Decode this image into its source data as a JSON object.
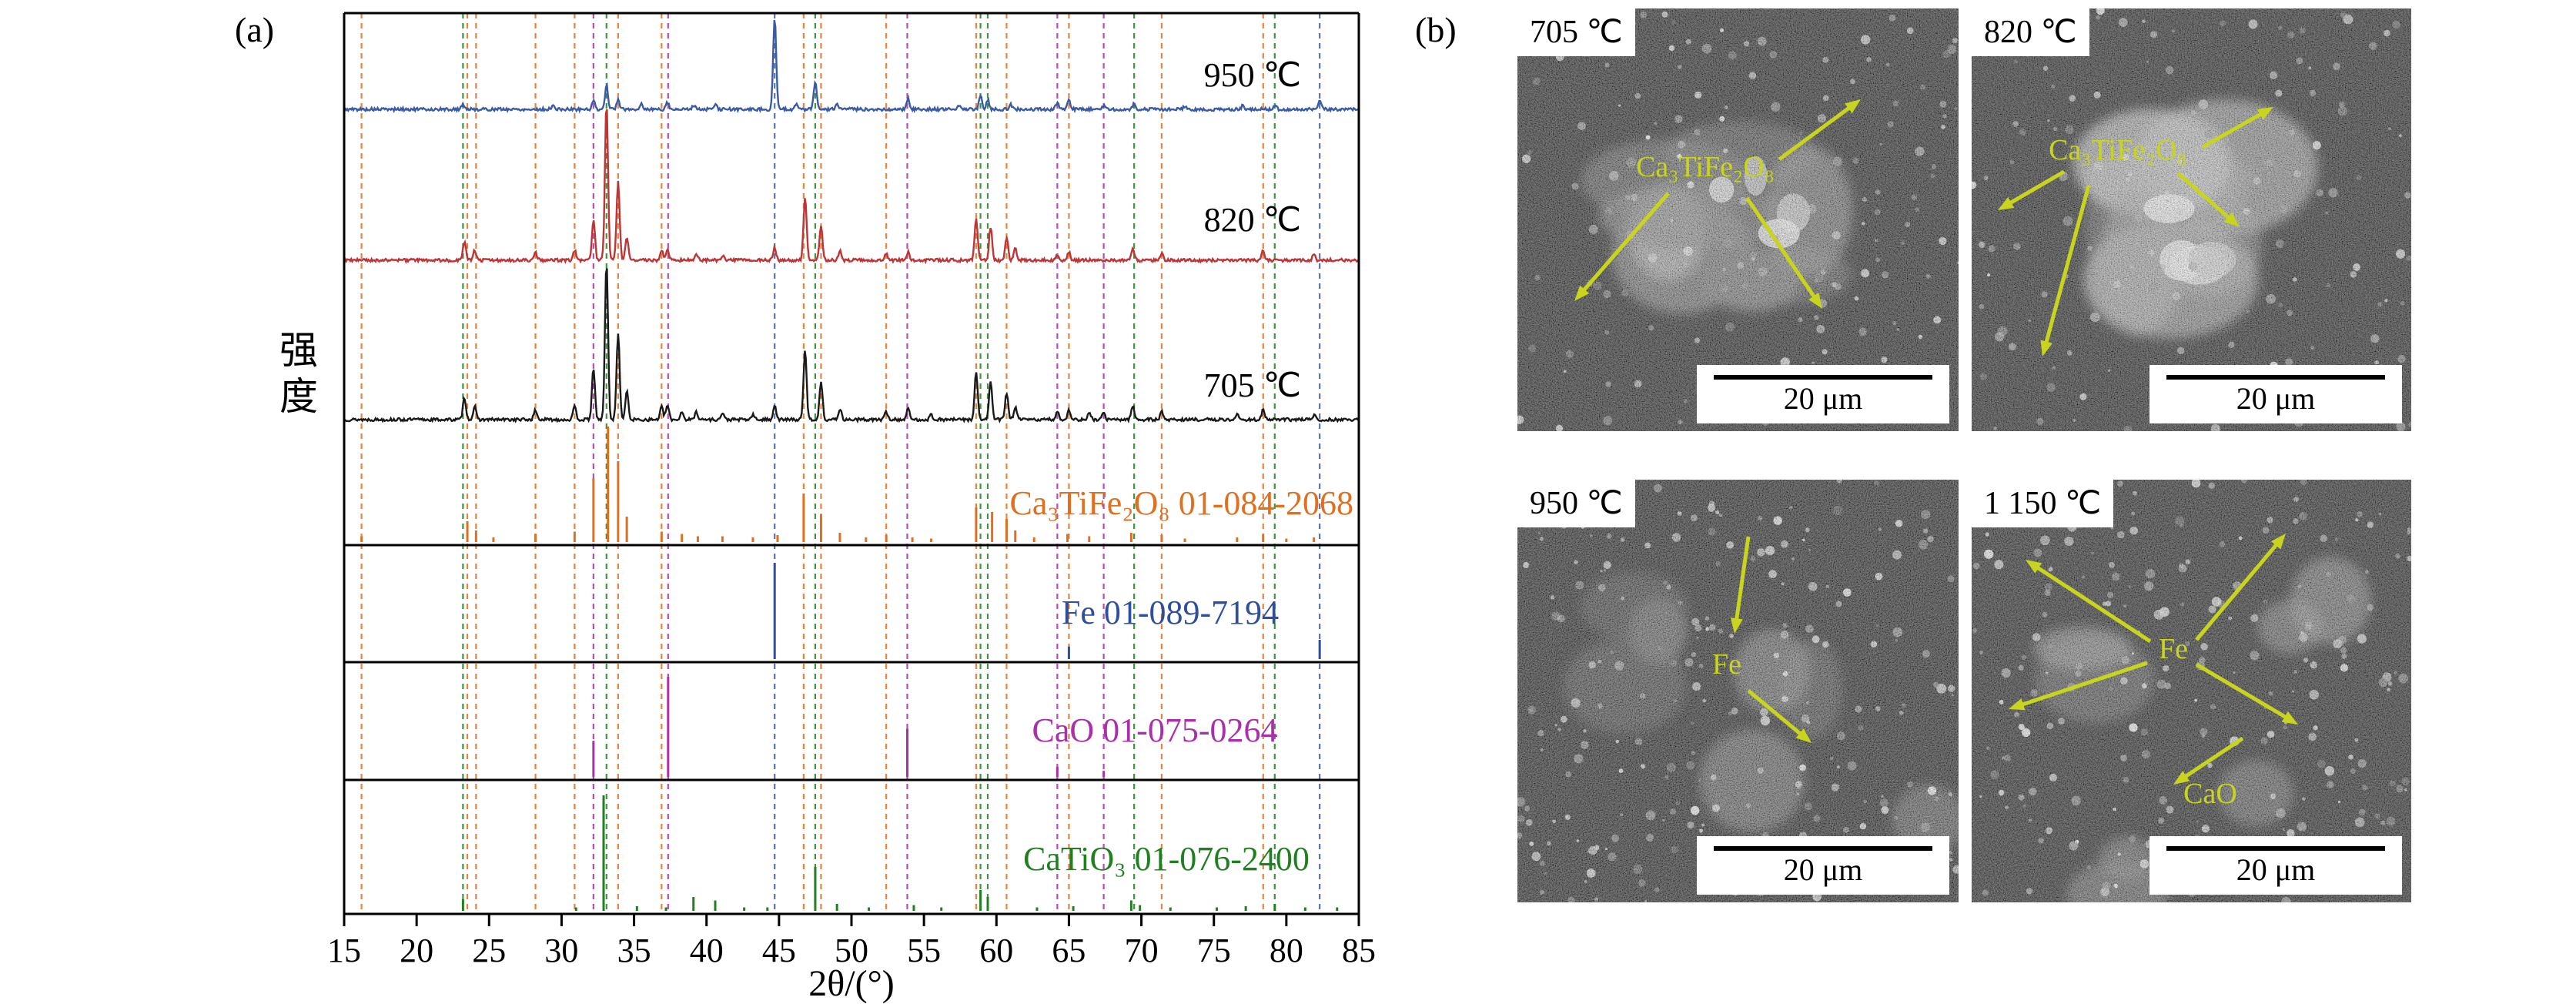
{
  "figure": {
    "panel_a_label": "(a)"
  },
  "chart_data": {
    "type": "line",
    "xlabel": "2θ/(°)",
    "ylabel": "强度",
    "x_range": [
      15,
      85
    ],
    "x_ticks": [
      "15",
      "20",
      "25",
      "30",
      "35",
      "40",
      "45",
      "50",
      "55",
      "60",
      "65",
      "70",
      "75",
      "80",
      "85"
    ],
    "series": [
      {
        "label": "950 ℃",
        "color": "#3b5ba5",
        "peaks": [
          [
            23.2,
            6
          ],
          [
            29.4,
            4
          ],
          [
            32.2,
            9
          ],
          [
            33.1,
            26
          ],
          [
            33.9,
            10
          ],
          [
            35.5,
            6
          ],
          [
            37.3,
            8
          ],
          [
            39.1,
            5
          ],
          [
            40.6,
            5
          ],
          [
            44.7,
            100
          ],
          [
            46.2,
            6
          ],
          [
            47.5,
            30
          ],
          [
            49.0,
            6
          ],
          [
            53.9,
            12
          ],
          [
            57.4,
            5
          ],
          [
            58.9,
            15
          ],
          [
            59.4,
            11
          ],
          [
            61.0,
            5
          ],
          [
            64.2,
            7
          ],
          [
            65.0,
            10
          ],
          [
            67.4,
            4
          ],
          [
            69.5,
            7
          ],
          [
            73.0,
            3
          ],
          [
            77.0,
            4
          ],
          [
            79.2,
            4
          ],
          [
            82.3,
            11
          ]
        ]
      },
      {
        "label": "820 ℃",
        "color": "#bf3434",
        "peaks": [
          [
            23.3,
            11
          ],
          [
            24.0,
            6
          ],
          [
            28.2,
            5
          ],
          [
            30.9,
            6
          ],
          [
            32.2,
            26
          ],
          [
            33.1,
            100
          ],
          [
            33.9,
            50
          ],
          [
            34.5,
            15
          ],
          [
            36.9,
            6
          ],
          [
            37.3,
            7
          ],
          [
            39.3,
            4
          ],
          [
            41.1,
            3
          ],
          [
            44.7,
            8
          ],
          [
            46.8,
            40
          ],
          [
            47.9,
            21
          ],
          [
            49.2,
            6
          ],
          [
            52.4,
            4
          ],
          [
            53.9,
            5
          ],
          [
            58.6,
            27
          ],
          [
            59.6,
            21
          ],
          [
            60.7,
            14
          ],
          [
            61.3,
            7
          ],
          [
            64.2,
            4
          ],
          [
            65.0,
            5
          ],
          [
            69.4,
            8
          ],
          [
            71.4,
            4
          ],
          [
            78.4,
            6
          ],
          [
            81.9,
            3
          ]
        ]
      },
      {
        "label": "705 ℃",
        "color": "#1a1a1a",
        "peaks": [
          [
            23.3,
            14
          ],
          [
            24.0,
            8
          ],
          [
            28.2,
            6
          ],
          [
            30.9,
            8
          ],
          [
            32.2,
            32
          ],
          [
            33.1,
            100
          ],
          [
            33.9,
            55
          ],
          [
            34.5,
            18
          ],
          [
            36.9,
            8
          ],
          [
            37.3,
            9
          ],
          [
            38.3,
            5
          ],
          [
            39.3,
            5
          ],
          [
            41.1,
            4
          ],
          [
            43.2,
            3
          ],
          [
            44.7,
            9
          ],
          [
            46.8,
            44
          ],
          [
            47.9,
            24
          ],
          [
            49.2,
            7
          ],
          [
            52.4,
            5
          ],
          [
            53.9,
            7
          ],
          [
            55.5,
            3
          ],
          [
            58.6,
            30
          ],
          [
            59.6,
            24
          ],
          [
            60.7,
            17
          ],
          [
            61.3,
            8
          ],
          [
            64.2,
            5
          ],
          [
            65.0,
            6
          ],
          [
            66.4,
            4
          ],
          [
            67.4,
            4
          ],
          [
            69.4,
            9
          ],
          [
            71.4,
            5
          ],
          [
            76.6,
            3
          ],
          [
            78.4,
            6
          ],
          [
            81.9,
            3
          ]
        ]
      }
    ],
    "references": [
      {
        "label": "Ca₃TiFe₂O₈ 01-084-2068",
        "color": "#e06f1f",
        "sticks": [
          [
            16.2,
            5
          ],
          [
            23.5,
            18
          ],
          [
            24.1,
            10
          ],
          [
            25.3,
            4
          ],
          [
            28.2,
            7
          ],
          [
            30.9,
            9
          ],
          [
            32.2,
            55
          ],
          [
            33.2,
            100
          ],
          [
            33.9,
            70
          ],
          [
            34.5,
            22
          ],
          [
            36.9,
            9
          ],
          [
            38.3,
            7
          ],
          [
            39.4,
            5
          ],
          [
            41.1,
            5
          ],
          [
            43.2,
            4
          ],
          [
            44.9,
            6
          ],
          [
            46.7,
            42
          ],
          [
            47.9,
            24
          ],
          [
            49.2,
            8
          ],
          [
            51.0,
            4
          ],
          [
            52.4,
            6
          ],
          [
            54.2,
            4
          ],
          [
            55.5,
            3
          ],
          [
            58.6,
            30
          ],
          [
            59.7,
            26
          ],
          [
            60.7,
            20
          ],
          [
            61.3,
            10
          ],
          [
            62.6,
            4
          ],
          [
            64.9,
            7
          ],
          [
            66.4,
            5
          ],
          [
            69.3,
            8
          ],
          [
            71.4,
            6
          ],
          [
            73.0,
            3
          ],
          [
            76.6,
            4
          ],
          [
            78.4,
            7
          ],
          [
            80.0,
            3
          ],
          [
            81.9,
            4
          ]
        ]
      },
      {
        "label": "Fe 01-089-7194",
        "color": "#2f4f9e",
        "sticks": [
          [
            44.7,
            100
          ],
          [
            65.0,
            13
          ],
          [
            82.3,
            20
          ]
        ]
      },
      {
        "label": "CaO 01-075-0264",
        "color": "#aa30aa",
        "sticks": [
          [
            32.2,
            36
          ],
          [
            37.35,
            100
          ],
          [
            53.85,
            48
          ],
          [
            64.2,
            10
          ],
          [
            67.4,
            6
          ]
        ]
      },
      {
        "label": "CaTiO₃ 01-076-2400",
        "color": "#208020",
        "sticks": [
          [
            23.2,
            10
          ],
          [
            31.0,
            3
          ],
          [
            32.9,
            100
          ],
          [
            35.2,
            4
          ],
          [
            37.2,
            3
          ],
          [
            39.1,
            12
          ],
          [
            40.6,
            9
          ],
          [
            42.6,
            3
          ],
          [
            44.2,
            3
          ],
          [
            47.5,
            38
          ],
          [
            49.0,
            6
          ],
          [
            51.2,
            3
          ],
          [
            54.3,
            5
          ],
          [
            56.2,
            3
          ],
          [
            58.9,
            18
          ],
          [
            59.4,
            12
          ],
          [
            62.8,
            3
          ],
          [
            65.3,
            4
          ],
          [
            69.3,
            9
          ],
          [
            69.9,
            5
          ],
          [
            72.0,
            3
          ],
          [
            75.2,
            3
          ],
          [
            77.2,
            4
          ],
          [
            79.2,
            6
          ],
          [
            81.3,
            3
          ],
          [
            83.5,
            3
          ]
        ]
      }
    ],
    "guide_lines": [
      {
        "color": "#e06f1f",
        "positions": [
          16.2,
          23.5,
          24.1,
          28.2,
          30.9,
          33.9,
          36.9,
          46.7,
          47.9,
          52.4,
          58.6,
          60.7,
          65.0,
          71.4,
          78.4
        ]
      },
      {
        "color": "#aa30aa",
        "positions": [
          32.2,
          37.35,
          53.85,
          64.2,
          67.4
        ]
      },
      {
        "color": "#208020",
        "positions": [
          23.2,
          33.1,
          47.5,
          58.9,
          59.4,
          69.5,
          79.2
        ]
      },
      {
        "color": "#3b5ba5",
        "positions": [
          44.7,
          82.3
        ]
      }
    ]
  },
  "panel_b": {
    "label": "(b)",
    "annotation_color": "#c8d41e",
    "images": [
      {
        "temp_label": "705 ℃",
        "scale_label": "20 μm",
        "annotations": [
          {
            "text": "Ca₃TiFe₂O₈"
          }
        ]
      },
      {
        "temp_label": "820 ℃",
        "scale_label": "20 μm",
        "annotations": [
          {
            "text": "Ca₃TiFe₂O₈"
          }
        ]
      },
      {
        "temp_label": "950 ℃",
        "scale_label": "20 μm",
        "annotations": [
          {
            "text": "Fe"
          }
        ]
      },
      {
        "temp_label": "1 150 ℃",
        "scale_label": "20 μm",
        "annotations": [
          {
            "text": "Fe"
          },
          {
            "text": "CaO"
          }
        ]
      }
    ]
  }
}
